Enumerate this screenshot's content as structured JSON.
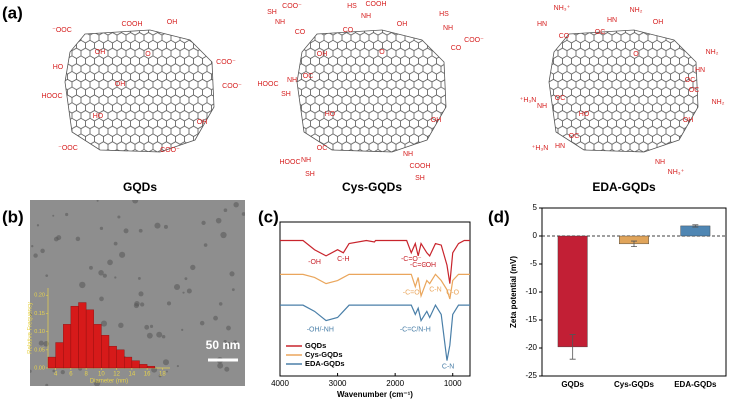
{
  "panel_labels": [
    "(a)",
    "(b)",
    "(c)",
    "(d)"
  ],
  "structures": [
    {
      "name": "GQDs",
      "groups": [
        "⁻OOC",
        "COOH",
        "OH",
        "OH",
        "O",
        "HO",
        "COO⁻",
        "COO⁻",
        "HOOC",
        "OH",
        "HO",
        "OH",
        "⁻OOC",
        "COO⁻"
      ]
    },
    {
      "name": "Cys-GQDs",
      "groups": [
        "SH",
        "COO⁻",
        "NH",
        "CO",
        "HS",
        "COOH",
        "NH",
        "CO",
        "OH",
        "HS",
        "NH",
        "COO⁻",
        "CO",
        "HOOC",
        "NH",
        "SH",
        "OC",
        "OH",
        "HO",
        "O",
        "OH",
        "HOOC",
        "NH",
        "SH",
        "OC",
        "NH",
        "COOH",
        "SH"
      ]
    },
    {
      "name": "EDA-GQDs",
      "groups": [
        "NH₃⁺",
        "HN",
        "CO",
        "NH₂",
        "HN",
        "OC",
        "OH",
        "O",
        "NH₂",
        "HN",
        "OC",
        "⁺H₃N",
        "NH",
        "OC",
        "HO",
        "OH",
        "NH₂",
        "OC",
        "⁺H₃N",
        "HN",
        "OC",
        "NH",
        "NH₃⁺"
      ]
    }
  ],
  "scale_bar": "50 nm",
  "chart_data": [
    {
      "type": "histogram",
      "xlabel": "Diameter (nm)",
      "ylabel": "Relative Frequency",
      "bins": [
        3,
        4,
        5,
        6,
        7,
        8,
        9,
        10,
        11,
        12,
        13,
        14,
        15,
        16,
        17
      ],
      "values": [
        0.03,
        0.07,
        0.12,
        0.17,
        0.18,
        0.16,
        0.12,
        0.09,
        0.06,
        0.05,
        0.03,
        0.02,
        0.01,
        0.005
      ],
      "color": "#d61a1a",
      "xlim": [
        3,
        19
      ],
      "ylim": [
        0,
        0.22
      ],
      "xticks": [
        4,
        6,
        8,
        10,
        12,
        14,
        16,
        18
      ],
      "yticks": [
        {
          "value": 0,
          "label": "0.00"
        },
        {
          "value": 0.05,
          "label": "0.05"
        },
        {
          "value": 0.1,
          "label": "0.10"
        },
        {
          "value": 0.15,
          "label": "0.15"
        },
        {
          "value": 0.2,
          "label": "0.20"
        }
      ]
    },
    {
      "type": "line",
      "xlabel": "Wavenumber (cm⁻¹)",
      "x": [
        4000,
        3600,
        3400,
        3200,
        3000,
        2900,
        2800,
        2500,
        2360,
        2340,
        2000,
        1800,
        1720,
        1650,
        1600,
        1550,
        1450,
        1400,
        1300,
        1200,
        1100,
        1050,
        1000,
        900,
        800,
        700
      ],
      "series": [
        {
          "name": "GQDs",
          "color": "#c8242c",
          "values": [
            88,
            88,
            82,
            78,
            82,
            80,
            86,
            88,
            87,
            88,
            88,
            88,
            80,
            86,
            78,
            86,
            80,
            78,
            86,
            85,
            72,
            60,
            80,
            86,
            88,
            88
          ]
        },
        {
          "name": "Cys-GQDs",
          "color": "#eaa65c",
          "values": [
            66,
            66,
            64,
            60,
            62,
            64,
            66,
            66,
            66,
            66,
            66,
            66,
            66,
            58,
            64,
            52,
            62,
            60,
            66,
            62,
            56,
            50,
            62,
            66,
            66,
            66
          ]
        },
        {
          "name": "EDA-GQDs",
          "color": "#4a7fa8",
          "values": [
            46,
            46,
            42,
            36,
            38,
            42,
            46,
            46,
            46,
            46,
            46,
            46,
            46,
            40,
            44,
            36,
            42,
            38,
            46,
            40,
            10,
            20,
            40,
            46,
            46,
            46
          ]
        }
      ],
      "annotations": [
        {
          "text": "-OH",
          "series": 0
        },
        {
          "text": "C-H",
          "series": 0
        },
        {
          "text": "-C=O⁻",
          "series": 0
        },
        {
          "text": "-C=C",
          "series": 0
        },
        {
          "text": "-OH",
          "series": 0
        },
        {
          "text": "-C=O",
          "series": 1
        },
        {
          "text": "C-N",
          "series": 1
        },
        {
          "text": "C-O",
          "series": 1
        },
        {
          "text": "-OH/-NH",
          "series": 2
        },
        {
          "text": "-C=C/N-H",
          "series": 2
        },
        {
          "text": "C-N",
          "series": 2
        }
      ],
      "xlim": [
        4000,
        700
      ],
      "ylim": [
        0,
        100
      ],
      "xticks": [
        4000,
        3000,
        2000,
        1000
      ],
      "legend": "lower-left"
    },
    {
      "type": "bar",
      "ylabel": "Zeta potential (mV)",
      "categories": [
        "GQDs",
        "Cys-GQDs",
        "EDA-GQDs"
      ],
      "values": [
        -19.8,
        -1.4,
        1.8
      ],
      "errors": [
        2.2,
        0.5,
        0.2
      ],
      "colors": [
        "#c21f35",
        "#e0a45a",
        "#4f86b3"
      ],
      "ylim": [
        -25,
        5
      ],
      "yticks": [
        -25,
        -20,
        -15,
        -10,
        -5,
        0,
        5
      ]
    }
  ]
}
